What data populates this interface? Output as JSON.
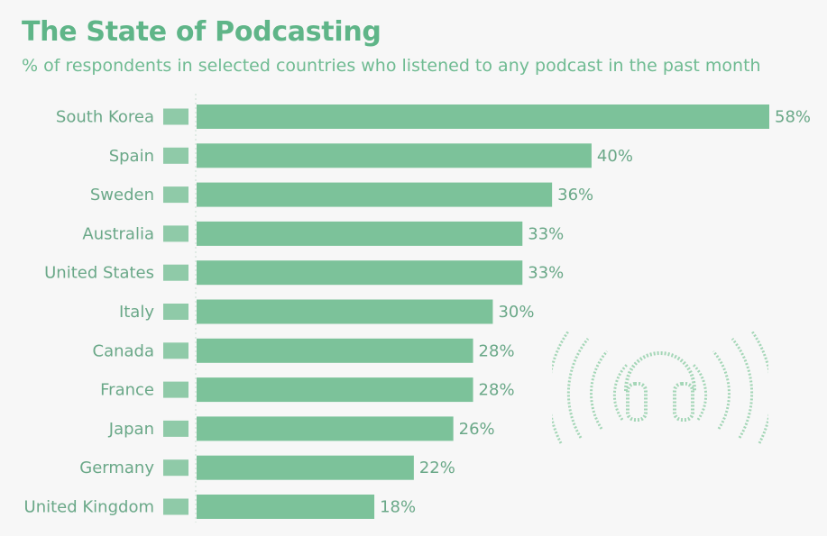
{
  "header": {
    "title": "The State of Podcasting",
    "subtitle": "% of respondents in selected countries who listened to any podcast in the past month"
  },
  "colors": {
    "bar": "#7cc29a",
    "text": "#5a9e79",
    "label": "#6aa888",
    "background": "#f7f7f7",
    "flag": "#7cc29a"
  },
  "decoration": {
    "icon": "headphones-icon"
  },
  "chart_data": {
    "type": "bar",
    "orientation": "horizontal",
    "categories": [
      "South Korea",
      "Spain",
      "Sweden",
      "Australia",
      "United States",
      "Italy",
      "Canada",
      "France",
      "Japan",
      "Germany",
      "United Kingdom"
    ],
    "values": [
      58,
      40,
      36,
      33,
      33,
      30,
      28,
      28,
      26,
      22,
      18
    ],
    "value_labels": [
      "58%",
      "40%",
      "36%",
      "33%",
      "33%",
      "30%",
      "28%",
      "28%",
      "26%",
      "22%",
      "18%"
    ],
    "flag_icons": [
      "flag-south-korea-icon",
      "flag-spain-icon",
      "flag-sweden-icon",
      "flag-australia-icon",
      "flag-united-states-icon",
      "flag-italy-icon",
      "flag-canada-icon",
      "flag-france-icon",
      "flag-japan-icon",
      "flag-germany-icon",
      "flag-united-kingdom-icon"
    ],
    "xlim": [
      0,
      58
    ],
    "title": "The State of Podcasting",
    "subtitle": "% of respondents in selected countries who listened to any podcast in the past month",
    "grid": false,
    "legend": "none"
  }
}
